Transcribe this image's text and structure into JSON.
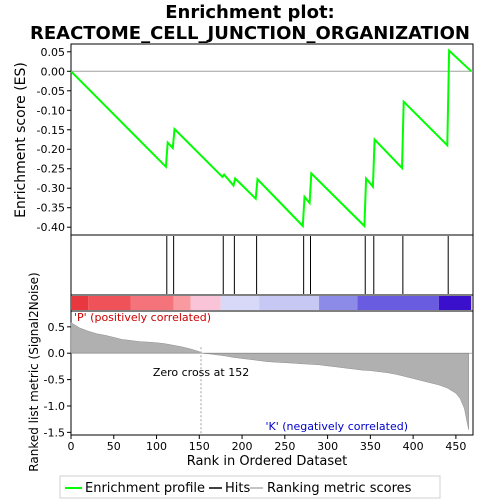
{
  "chart_data": {
    "type": "line",
    "title_line1": "Enrichment plot:",
    "title_line2": "REACTOME_CELL_JUNCTION_ORGANIZATION",
    "es_ylabel": "Enrichment score (ES)",
    "metric_ylabel": "Ranked list metric (Signal2Noise)",
    "xlabel": "Rank in Ordered Dataset",
    "xlim": [
      0,
      470
    ],
    "es_ylim": [
      -0.42,
      0.07
    ],
    "metric_ylim": [
      -1.55,
      0.8
    ],
    "x_ticks": [
      0,
      50,
      100,
      150,
      200,
      250,
      300,
      350,
      400,
      450
    ],
    "es_ticks": [
      0.05,
      0.0,
      -0.05,
      -0.1,
      -0.15,
      -0.2,
      -0.25,
      -0.3,
      -0.35,
      -0.4
    ],
    "es_tick_labels": [
      "0.05",
      "0.00",
      "-0.05",
      "-0.10",
      "-0.15",
      "-0.20",
      "-0.25",
      "-0.30",
      "-0.35",
      "-0.40"
    ],
    "metric_ticks": [
      0.5,
      0.0,
      -0.5,
      -1.0,
      -1.5
    ],
    "metric_tick_labels": [
      "0.5",
      "0.0",
      "-0.5",
      "-1.0",
      "-1.5"
    ],
    "enrichment_profile": {
      "x": [
        0,
        111,
        113,
        119,
        121,
        177,
        179,
        190,
        192,
        216,
        218,
        271,
        273,
        279,
        281,
        343,
        345,
        353,
        355,
        387,
        389,
        440,
        442,
        468
      ],
      "y": [
        0.0,
        -0.245,
        -0.183,
        -0.197,
        -0.148,
        -0.271,
        -0.265,
        -0.293,
        -0.275,
        -0.327,
        -0.277,
        -0.397,
        -0.322,
        -0.338,
        -0.262,
        -0.397,
        -0.275,
        -0.296,
        -0.175,
        -0.248,
        -0.078,
        -0.19,
        0.053,
        0.0
      ]
    },
    "hits": [
      112,
      120,
      178,
      191,
      217,
      272,
      280,
      344,
      354,
      388,
      441
    ],
    "ranking_metric": {
      "x": [
        0,
        10,
        20,
        30,
        40,
        50,
        60,
        70,
        80,
        90,
        100,
        110,
        120,
        130,
        140,
        150,
        152,
        160,
        170,
        180,
        190,
        200,
        210,
        220,
        230,
        240,
        250,
        260,
        270,
        280,
        290,
        300,
        310,
        320,
        330,
        340,
        350,
        360,
        370,
        380,
        390,
        400,
        410,
        420,
        430,
        440,
        450,
        455,
        460,
        463,
        465
      ],
      "y": [
        0.58,
        0.48,
        0.42,
        0.37,
        0.34,
        0.3,
        0.26,
        0.24,
        0.22,
        0.21,
        0.2,
        0.18,
        0.15,
        0.12,
        0.08,
        0.03,
        0.0,
        -0.01,
        -0.03,
        -0.05,
        -0.08,
        -0.1,
        -0.12,
        -0.14,
        -0.16,
        -0.17,
        -0.18,
        -0.19,
        -0.2,
        -0.21,
        -0.22,
        -0.24,
        -0.26,
        -0.28,
        -0.3,
        -0.32,
        -0.33,
        -0.35,
        -0.37,
        -0.4,
        -0.44,
        -0.48,
        -0.52,
        -0.56,
        -0.6,
        -0.66,
        -0.76,
        -0.86,
        -1.05,
        -1.3,
        -1.45
      ]
    },
    "color_bar": [
      {
        "from": 0,
        "to": 20,
        "color": "#e8373f"
      },
      {
        "from": 20,
        "to": 70,
        "color": "#f0525a"
      },
      {
        "from": 70,
        "to": 120,
        "color": "#f5737a"
      },
      {
        "from": 120,
        "to": 140,
        "color": "#f89aa0"
      },
      {
        "from": 140,
        "to": 175,
        "color": "#f9c4d8"
      },
      {
        "from": 175,
        "to": 220,
        "color": "#d8d8f8"
      },
      {
        "from": 220,
        "to": 290,
        "color": "#c8c8f4"
      },
      {
        "from": 290,
        "to": 335,
        "color": "#8c8ce8"
      },
      {
        "from": 335,
        "to": 430,
        "color": "#6a5ce0"
      },
      {
        "from": 430,
        "to": 468,
        "color": "#3a10cc"
      }
    ],
    "zero_cross": 152,
    "zero_cross_label": "Zero cross at 152",
    "pos_label": "'P' (positively correlated)",
    "neg_label": "'K' (negatively correlated)",
    "legend": [
      "Enrichment profile",
      "Hits",
      "Ranking metric scores"
    ],
    "colors": {
      "profile": "#00ff00",
      "hits": "#000000",
      "metric_fill": "#b0b0b0",
      "pos_label": "#cc0000",
      "neg_label": "#0000cc",
      "zero_line": "#a0a0a0"
    }
  }
}
